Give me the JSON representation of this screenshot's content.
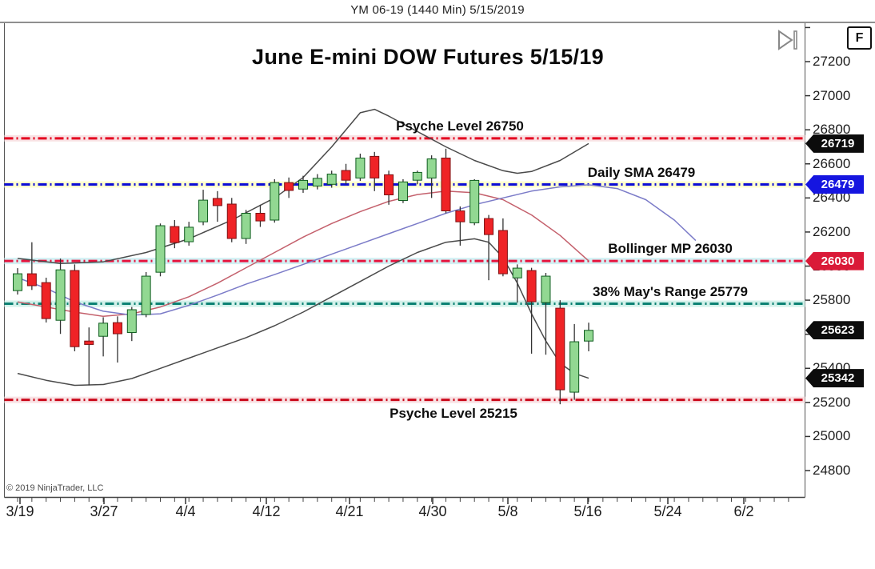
{
  "header": {
    "title": "YM 06-19 (1440 Min)  5/15/2019"
  },
  "toolbar": {
    "f_button": "F",
    "skip_icon_name": "skip-to-end-icon"
  },
  "watermark": "© 2019 NinjaTrader, LLC",
  "chart_data": {
    "type": "candlestick",
    "title": "June E-mini DOW Futures 5/15/19",
    "ylim": [
      24700,
      27450
    ],
    "grid": false,
    "y_ticks": [
      27400,
      27200,
      27000,
      26800,
      26600,
      26400,
      26200,
      26000,
      25800,
      25600,
      25400,
      25200,
      25000,
      24800
    ],
    "y_tick_labeled_max": 27200,
    "x_axis": {
      "labels": [
        "3/19",
        "3/27",
        "4/4",
        "4/12",
        "4/21",
        "4/30",
        "5/8",
        "5/16",
        "5/24",
        "6/2"
      ],
      "label_x": [
        25,
        130,
        232,
        333,
        437,
        541,
        635,
        735,
        835,
        930
      ]
    },
    "candles": {
      "up_color": "#92d892",
      "up_border": "#0f5c1f",
      "down_color": "#ef2326",
      "down_border": "#7e1113",
      "wick_color": "#333333",
      "dates": [
        "3/19",
        "3/20",
        "3/21",
        "3/22",
        "3/25",
        "3/26",
        "3/27",
        "3/28",
        "3/29",
        "4/1",
        "4/2",
        "4/3",
        "4/4",
        "4/5",
        "4/8",
        "4/9",
        "4/10",
        "4/11",
        "4/12",
        "4/15",
        "4/16",
        "4/17",
        "4/18",
        "4/22",
        "4/23",
        "4/24",
        "4/25",
        "4/26",
        "4/29",
        "4/30",
        "5/1",
        "5/2",
        "5/3",
        "5/6",
        "5/7",
        "5/8",
        "5/9",
        "5/10",
        "5/13",
        "5/14",
        "5/15"
      ],
      "open": [
        25856,
        25955,
        25903,
        25682,
        25974,
        25560,
        25588,
        25668,
        25610,
        25716,
        25964,
        26232,
        26143,
        26260,
        26397,
        26364,
        26162,
        26310,
        26270,
        26490,
        26452,
        26470,
        26480,
        26561,
        26517,
        26644,
        26536,
        26385,
        26504,
        26517,
        26634,
        26324,
        26254,
        26279,
        26209,
        25931,
        25974,
        25786,
        25753,
        25260,
        25560
      ],
      "high": [
        25988,
        26140,
        25932,
        26044,
        26010,
        25640,
        25700,
        25705,
        25760,
        25965,
        26250,
        26270,
        26260,
        26448,
        26440,
        26400,
        26330,
        26360,
        26510,
        26520,
        26530,
        26540,
        26560,
        26600,
        26660,
        26670,
        26560,
        26510,
        26560,
        26650,
        26689,
        26350,
        26510,
        26300,
        26280,
        26010,
        25990,
        25960,
        25800,
        25660,
        25668
      ],
      "low": [
        25833,
        25860,
        25669,
        25602,
        25500,
        25300,
        25470,
        25434,
        25560,
        25700,
        25940,
        26105,
        26120,
        26240,
        26260,
        26140,
        26130,
        26230,
        26255,
        26400,
        26430,
        26450,
        26460,
        26480,
        26500,
        26440,
        26360,
        26370,
        26480,
        26400,
        26310,
        26120,
        26240,
        25917,
        25940,
        25786,
        25486,
        25480,
        25189,
        25215,
        25500
      ],
      "close": [
        25955,
        25885,
        25692,
        25978,
        25527,
        25540,
        25665,
        25603,
        25744,
        25941,
        26237,
        26138,
        26228,
        26387,
        26355,
        26162,
        26310,
        26265,
        26490,
        26444,
        26503,
        26515,
        26540,
        26504,
        26634,
        26517,
        26418,
        26494,
        26550,
        26629,
        26324,
        26260,
        26503,
        26185,
        25955,
        25988,
        25791,
        25941,
        25274,
        25556,
        25623
      ]
    },
    "overlays": [
      {
        "name": "bollinger-upper-band",
        "color": "#4a4a4a",
        "width": 1.5,
        "points": [
          [
            0,
            26045
          ],
          [
            3,
            26015
          ],
          [
            6,
            26025
          ],
          [
            9,
            26080
          ],
          [
            12,
            26160
          ],
          [
            15,
            26270
          ],
          [
            18,
            26400
          ],
          [
            20,
            26520
          ],
          [
            22,
            26700
          ],
          [
            24,
            26900
          ],
          [
            25,
            26920
          ],
          [
            26,
            26880
          ],
          [
            28,
            26790
          ],
          [
            30,
            26700
          ],
          [
            32,
            26620
          ],
          [
            34,
            26560
          ],
          [
            35,
            26545
          ],
          [
            36,
            26555
          ],
          [
            38,
            26620
          ],
          [
            40,
            26719
          ]
        ]
      },
      {
        "name": "bollinger-lower-band",
        "color": "#4a4a4a",
        "width": 1.5,
        "points": [
          [
            0,
            25370
          ],
          [
            2,
            25330
          ],
          [
            4,
            25300
          ],
          [
            6,
            25305
          ],
          [
            8,
            25340
          ],
          [
            10,
            25400
          ],
          [
            12,
            25460
          ],
          [
            14,
            25520
          ],
          [
            16,
            25580
          ],
          [
            18,
            25650
          ],
          [
            20,
            25730
          ],
          [
            22,
            25820
          ],
          [
            24,
            25910
          ],
          [
            26,
            26000
          ],
          [
            28,
            26080
          ],
          [
            30,
            26140
          ],
          [
            32,
            26160
          ],
          [
            33,
            26140
          ],
          [
            34,
            26050
          ],
          [
            35,
            25900
          ],
          [
            36,
            25720
          ],
          [
            37,
            25560
          ],
          [
            38,
            25430
          ],
          [
            39,
            25370
          ],
          [
            40,
            25342
          ]
        ]
      },
      {
        "name": "bollinger-midline",
        "color": "#c4606c",
        "width": 1.5,
        "points": [
          [
            0,
            25790
          ],
          [
            2,
            25760
          ],
          [
            4,
            25730
          ],
          [
            6,
            25705
          ],
          [
            8,
            25720
          ],
          [
            10,
            25760
          ],
          [
            12,
            25820
          ],
          [
            14,
            25900
          ],
          [
            16,
            25990
          ],
          [
            18,
            26080
          ],
          [
            20,
            26170
          ],
          [
            22,
            26250
          ],
          [
            24,
            26320
          ],
          [
            26,
            26380
          ],
          [
            28,
            26420
          ],
          [
            30,
            26440
          ],
          [
            32,
            26430
          ],
          [
            34,
            26390
          ],
          [
            36,
            26300
          ],
          [
            38,
            26180
          ],
          [
            40,
            26030
          ]
        ]
      },
      {
        "name": "daily-sma-curve",
        "color": "#7b7bc8",
        "width": 1.5,
        "points": [
          [
            0,
            25932
          ],
          [
            2,
            25870
          ],
          [
            4,
            25790
          ],
          [
            6,
            25735
          ],
          [
            8,
            25712
          ],
          [
            10,
            25720
          ],
          [
            12,
            25770
          ],
          [
            14,
            25830
          ],
          [
            16,
            25894
          ],
          [
            18,
            25950
          ],
          [
            20,
            26010
          ],
          [
            22,
            26070
          ],
          [
            24,
            26130
          ],
          [
            26,
            26190
          ],
          [
            28,
            26250
          ],
          [
            30,
            26310
          ],
          [
            32,
            26360
          ],
          [
            34,
            26400
          ],
          [
            36,
            26440
          ],
          [
            38,
            26465
          ],
          [
            40,
            26477
          ],
          [
            42,
            26455
          ],
          [
            44,
            26390
          ],
          [
            46,
            26270
          ],
          [
            47.5,
            26150
          ]
        ]
      }
    ],
    "rays": [
      {
        "label": "Psyche Level 26750",
        "value": 26750,
        "color": "#e40520",
        "glow": "#f9e2e4",
        "label_x": 575,
        "label_side": "above"
      },
      {
        "label": "Daily SMA 26479",
        "value": 26479,
        "color": "#0d0dd6",
        "glow": "#ffffcf",
        "label_x": 802,
        "label_side": "above"
      },
      {
        "label": "Bollinger MP 26030",
        "value": 26030,
        "color": "#e6143e",
        "glow": "#d3f1f4",
        "label_x": 838,
        "label_side": "above"
      },
      {
        "label": "38% May's Range 25779",
        "value": 25779,
        "color": "#0d8274",
        "glow": "#d3f1ea",
        "label_x": 838,
        "label_side": "above"
      },
      {
        "label": "Psyche Level 25215",
        "value": 25215,
        "color": "#cb0a1c",
        "glow": "#f9e2e4",
        "label_x": 567,
        "label_side": "below"
      }
    ],
    "price_tags": [
      {
        "value": "26719",
        "price": 26719,
        "color": "#0c0c0c"
      },
      {
        "value": "26479",
        "price": 26479,
        "color": "#1515e0"
      },
      {
        "value": "26030",
        "price": 26030,
        "color": "#da1a38"
      },
      {
        "value": "25623",
        "price": 25623,
        "color": "#0c0c0c"
      },
      {
        "value": "25342",
        "price": 25342,
        "color": "#0c0c0c"
      }
    ]
  }
}
